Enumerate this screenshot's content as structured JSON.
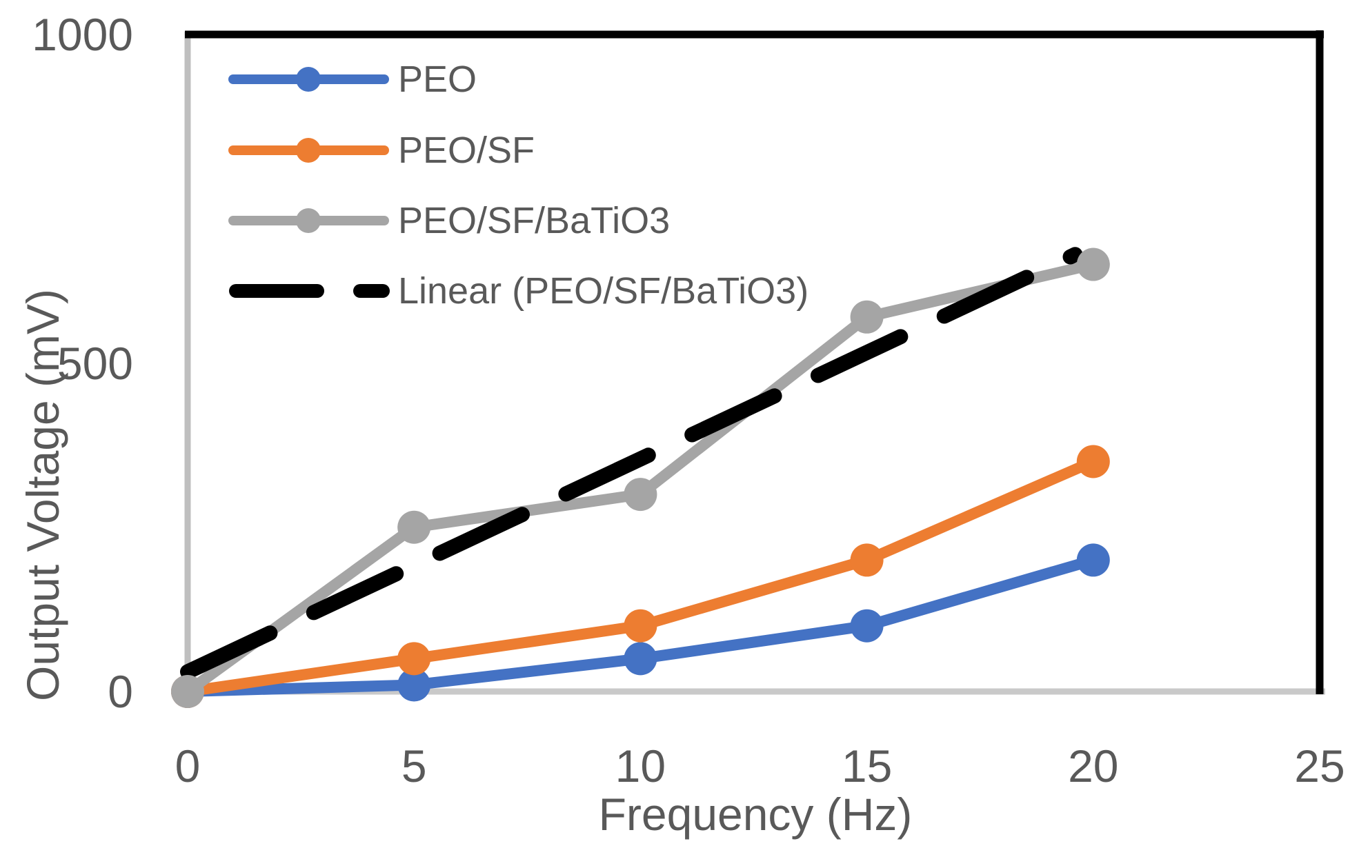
{
  "figure": {
    "background": "#ffffff",
    "text_color": "#595959",
    "plot_border_color": "#000000",
    "y_axis_line_color": "#bfbfbf",
    "x_axis_line_color": "#c9c9c9"
  },
  "chart_data": {
    "type": "line",
    "title": "",
    "xlabel": "Frequency (Hz)",
    "ylabel": "Output Voltage (mV)",
    "x": [
      0,
      5,
      10,
      15,
      20
    ],
    "series": [
      {
        "name": "PEO",
        "color": "#4472C4",
        "marker": "circle",
        "values": [
          0,
          10,
          50,
          100,
          200
        ]
      },
      {
        "name": "PEO/SF",
        "color": "#ED7D31",
        "marker": "circle",
        "values": [
          0,
          50,
          100,
          200,
          350
        ]
      },
      {
        "name": "PEO/SF/BaTiO3",
        "color": "#A5A5A5",
        "marker": "circle",
        "values": [
          0,
          250,
          300,
          570,
          650
        ]
      },
      {
        "name": "Linear (PEO/SF/BaTiO3)",
        "color": "#000000",
        "style": "dashed-trendline",
        "trend": {
          "x_start": 0,
          "y_start": 30,
          "x_end": 19.6,
          "y_end": 665
        }
      }
    ],
    "xlim": [
      0,
      25
    ],
    "ylim": [
      0,
      1000
    ],
    "x_ticks": [
      "0",
      "5",
      "10",
      "15",
      "20",
      "25"
    ],
    "y_ticks": [
      "0",
      "500",
      "1000"
    ],
    "grid": false,
    "legend_position": "inside-top-left"
  }
}
